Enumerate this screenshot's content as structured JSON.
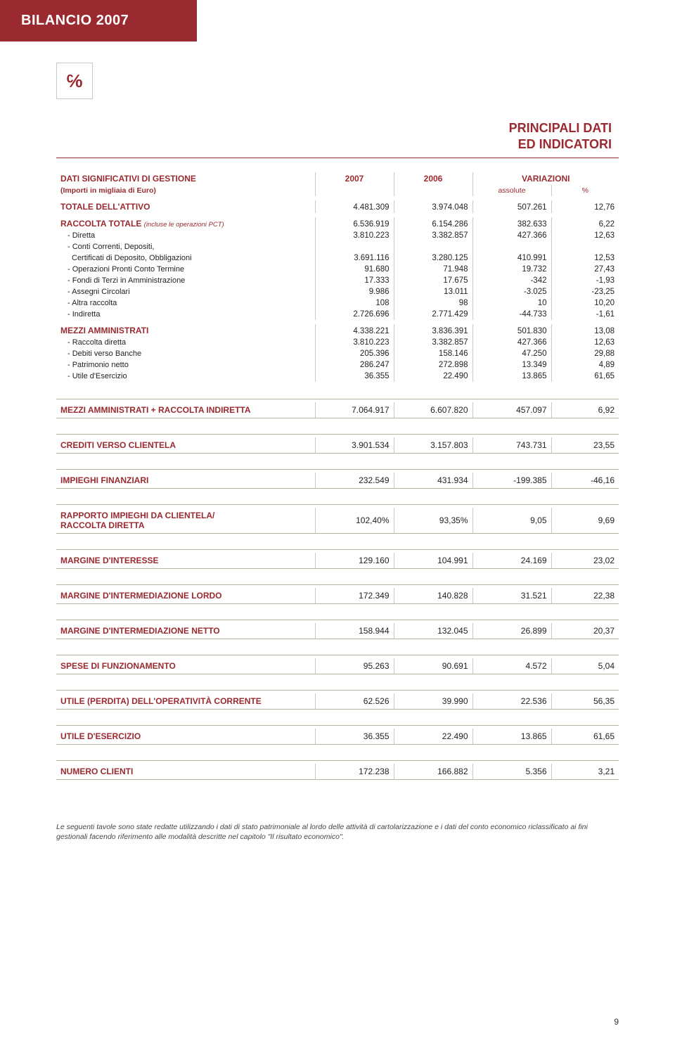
{
  "header_title": "BILANCIO 2007",
  "logo_glyph": "℅",
  "section_title_l1": "PRINCIPALI DATI",
  "section_title_l2": "ED INDICATORI",
  "colors": {
    "brand": "#9a2a2f",
    "page_bg": "#ffffff",
    "rule": "#b8b0a0"
  },
  "col_widths": {
    "label": "46%",
    "c1": "14%",
    "c2": "14%",
    "c3": "14%",
    "c4": "12%"
  },
  "header_row": {
    "label": "DATI SIGNIFICATIVI DI GESTIONE",
    "sublabel": "(Importi in migliaia di Euro)",
    "c1": "2007",
    "c2": "2006",
    "c3": "VARIAZIONI",
    "sub_c3": "assolute",
    "sub_c4": "%"
  },
  "block1": [
    {
      "head": true,
      "lbl": "TOTALE DELL'ATTIVO",
      "c1": "4.481.309",
      "c2": "3.974.048",
      "c3": "507.261",
      "c4": "12,76"
    }
  ],
  "block2": [
    {
      "head": true,
      "lbl": "RACCOLTA TOTALE",
      "note": "(incluse le operazioni PCT)",
      "c1": "6.536.919",
      "c2": "6.154.286",
      "c3": "382.633",
      "c4": "6,22"
    },
    {
      "lbl": "- Diretta",
      "c1": "3.810.223",
      "c2": "3.382.857",
      "c3": "427.366",
      "c4": "12,63"
    },
    {
      "lbl": "- Conti Correnti, Depositi,",
      "c1": "",
      "c2": "",
      "c3": "",
      "c4": ""
    },
    {
      "lbl": "  Certificati di Deposito, Obbligazioni",
      "c1": "3.691.116",
      "c2": "3.280.125",
      "c3": "410.991",
      "c4": "12,53"
    },
    {
      "lbl": "- Operazioni Pronti Conto Termine",
      "c1": "91.680",
      "c2": "71.948",
      "c3": "19.732",
      "c4": "27,43"
    },
    {
      "lbl": "- Fondi di Terzi in Amministrazione",
      "c1": "17.333",
      "c2": "17.675",
      "c3": "-342",
      "c4": "-1,93"
    },
    {
      "lbl": "- Assegni Circolari",
      "c1": "9.986",
      "c2": "13.011",
      "c3": "-3.025",
      "c4": "-23,25"
    },
    {
      "lbl": "- Altra raccolta",
      "c1": "108",
      "c2": "98",
      "c3": "10",
      "c4": "10,20"
    },
    {
      "lbl": "- Indiretta",
      "c1": "2.726.696",
      "c2": "2.771.429",
      "c3": "-44.733",
      "c4": "-1,61"
    }
  ],
  "block3": [
    {
      "head": true,
      "lbl": "MEZZI AMMINISTRATI",
      "c1": "4.338.221",
      "c2": "3.836.391",
      "c3": "501.830",
      "c4": "13,08"
    },
    {
      "lbl": "- Raccolta diretta",
      "c1": "3.810.223",
      "c2": "3.382.857",
      "c3": "427.366",
      "c4": "12,63"
    },
    {
      "lbl": "- Debiti verso Banche",
      "c1": "205.396",
      "c2": "158.146",
      "c3": "47.250",
      "c4": "29,88"
    },
    {
      "lbl": "- Patrimonio netto",
      "c1": "286.247",
      "c2": "272.898",
      "c3": "13.349",
      "c4": "4,89"
    },
    {
      "lbl": "- Utile d'Esercizio",
      "c1": "36.355",
      "c2": "22.490",
      "c3": "13.865",
      "c4": "61,65"
    }
  ],
  "singles": [
    {
      "lbl": "MEZZI AMMINISTRATI + RACCOLTA INDIRETTA",
      "c1": "7.064.917",
      "c2": "6.607.820",
      "c3": "457.097",
      "c4": "6,92"
    },
    {
      "lbl": "CREDITI VERSO CLIENTELA",
      "c1": "3.901.534",
      "c2": "3.157.803",
      "c3": "743.731",
      "c4": "23,55"
    },
    {
      "lbl": "IMPIEGHI FINANZIARI",
      "c1": "232.549",
      "c2": "431.934",
      "c3": "-199.385",
      "c4": "-46,16"
    },
    {
      "lbl": "RAPPORTO IMPIEGHI DA CLIENTELA/\nRACCOLTA DIRETTA",
      "c1": "102,40%",
      "c2": "93,35%",
      "c3": "9,05",
      "c4": "9,69"
    },
    {
      "lbl": "MARGINE D'INTERESSE",
      "c1": "129.160",
      "c2": "104.991",
      "c3": "24.169",
      "c4": "23,02"
    },
    {
      "lbl": "MARGINE D'INTERMEDIAZIONE LORDO",
      "c1": "172.349",
      "c2": "140.828",
      "c3": "31.521",
      "c4": "22,38"
    },
    {
      "lbl": "MARGINE D'INTERMEDIAZIONE NETTO",
      "c1": "158.944",
      "c2": "132.045",
      "c3": "26.899",
      "c4": "20,37"
    },
    {
      "lbl": "SPESE DI FUNZIONAMENTO",
      "c1": "95.263",
      "c2": "90.691",
      "c3": "4.572",
      "c4": "5,04"
    },
    {
      "lbl": "UTILE (PERDITA) DELL'OPERATIVITÀ CORRENTE",
      "c1": "62.526",
      "c2": "39.990",
      "c3": "22.536",
      "c4": "56,35"
    },
    {
      "lbl": "UTILE D'ESERCIZIO",
      "c1": "36.355",
      "c2": "22.490",
      "c3": "13.865",
      "c4": "61,65"
    },
    {
      "lbl": "NUMERO CLIENTI",
      "c1": "172.238",
      "c2": "166.882",
      "c3": "5.356",
      "c4": "3,21"
    }
  ],
  "footnote": "Le seguenti tavole sono state redatte utilizzando i dati di stato patrimoniale al lordo delle attività di cartolarizzazione e i dati del conto economico riclassificato ai fini gestionali facendo riferimento alle modalità descritte nel capitolo \"Il risultato economico\".",
  "page_number": "9"
}
